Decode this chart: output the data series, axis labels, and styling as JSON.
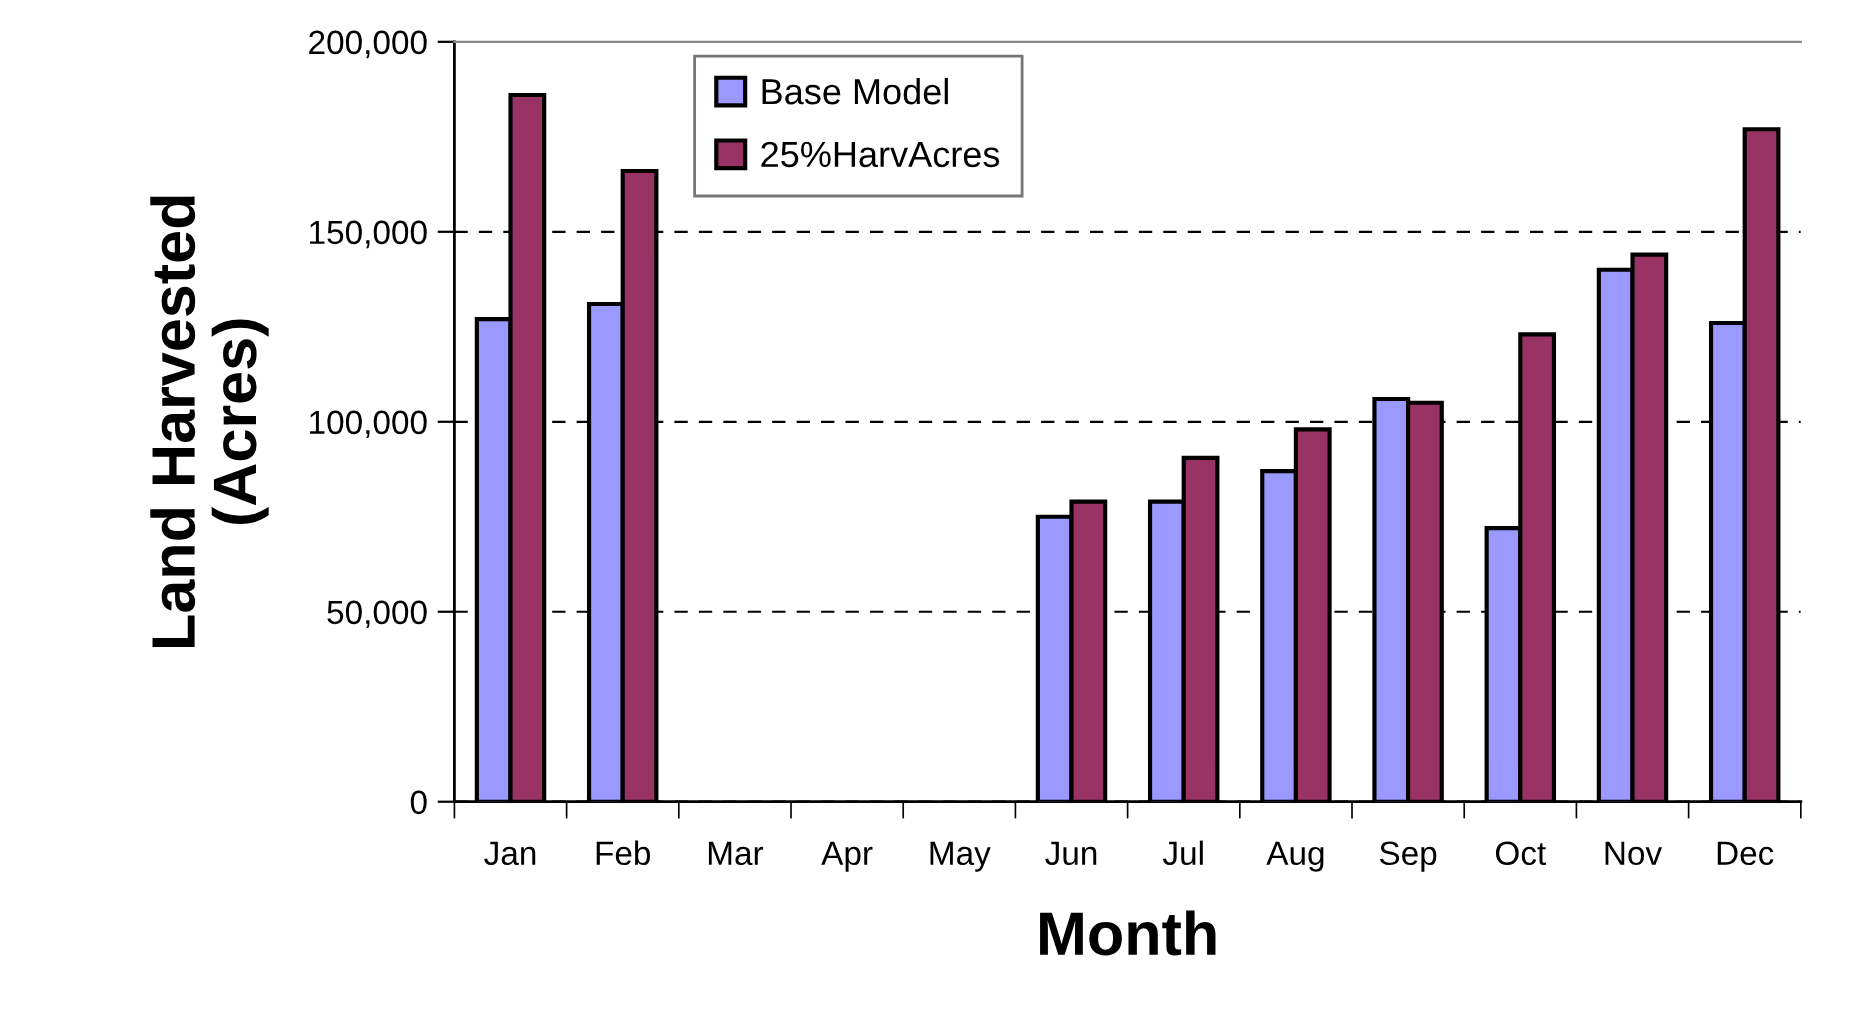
{
  "chart_data": {
    "type": "bar",
    "xlabel": "Month",
    "ylabel": "Land Harvested\n(Acres)",
    "categories": [
      "Jan",
      "Feb",
      "Mar",
      "Apr",
      "May",
      "Jun",
      "Jul",
      "Aug",
      "Sep",
      "Oct",
      "Nov",
      "Dec"
    ],
    "series": [
      {
        "name": "Base Model",
        "color": "#9999ff",
        "values": [
          127000,
          131000,
          null,
          null,
          null,
          75000,
          79000,
          87000,
          106000,
          72000,
          140000,
          126000
        ]
      },
      {
        "name": "25%HarvAcres",
        "color": "#993366",
        "values": [
          186000,
          166000,
          null,
          null,
          null,
          79000,
          90500,
          98000,
          105000,
          123000,
          144000,
          177000
        ]
      }
    ],
    "ylim": [
      0,
      200000
    ],
    "yticks": [
      {
        "value": 0,
        "label": "0"
      },
      {
        "value": 50000,
        "label": "50,000"
      },
      {
        "value": 100000,
        "label": "100,000"
      },
      {
        "value": 150000,
        "label": "150,000"
      },
      {
        "value": 200000,
        "label": "200,000"
      }
    ],
    "grid": "y",
    "legend": "top left"
  }
}
